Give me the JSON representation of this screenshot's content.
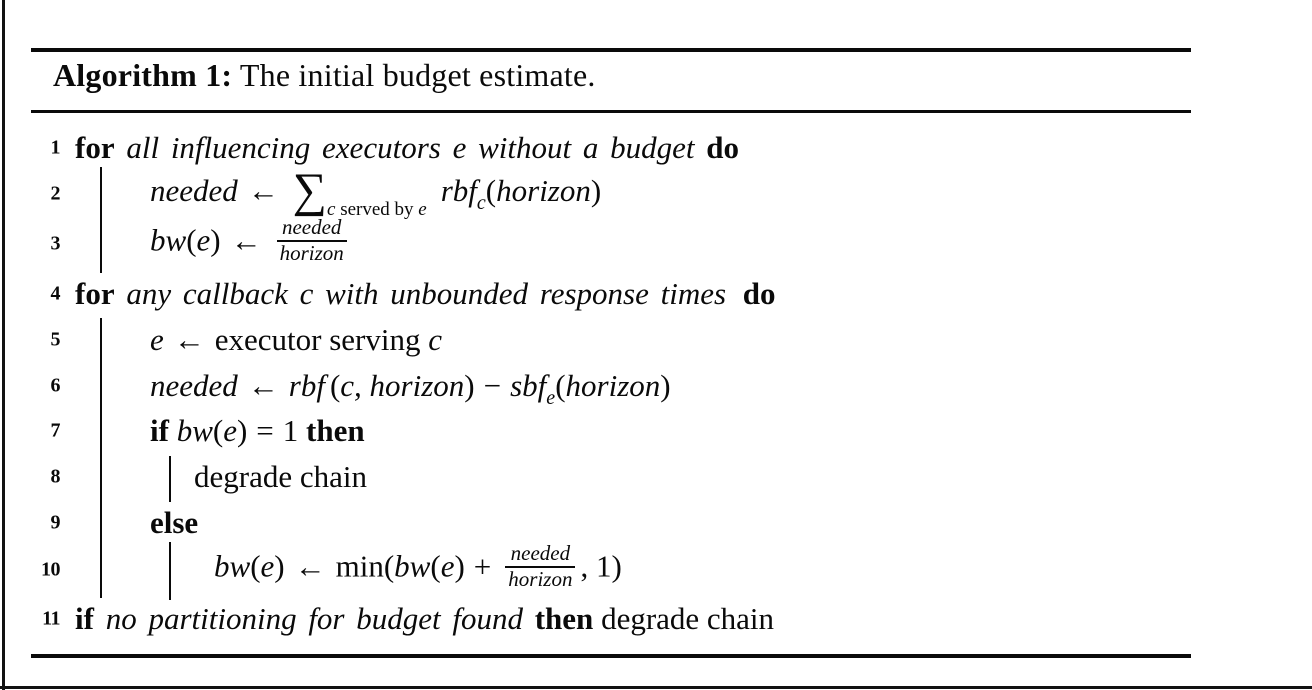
{
  "colors": {
    "ink": "#0a0a0a",
    "background": "#ffffff"
  },
  "caption": {
    "label": "Algorithm 1:",
    "title": " The initial budget estimate."
  },
  "lines": {
    "l1": {
      "num": "1",
      "parts": [
        {
          "c": "kw",
          "t": "for"
        },
        {
          "c": "it",
          "t": " all influencing executors e without a budget "
        },
        {
          "c": "kw",
          "t": "do"
        }
      ]
    },
    "l2": {
      "num": "2",
      "parts": [
        {
          "c": "ma",
          "t": "needed"
        },
        {
          "c": "ar",
          "t": "←"
        },
        {
          "c": "sum",
          "t": "∑"
        },
        {
          "c": "ssub",
          "t": "c"
        },
        {
          "c": "ssubrm",
          "t": " served by "
        },
        {
          "c": "ssub",
          "t": "e"
        },
        {
          "c": "ma mgl",
          "t": "rbf"
        },
        {
          "c": "sub",
          "t": "c"
        },
        {
          "c": "rm",
          "t": "("
        },
        {
          "c": "ma",
          "t": "horizon"
        },
        {
          "c": "rm",
          "t": ")"
        }
      ]
    },
    "l3": {
      "num": "3",
      "parts": [
        {
          "c": "ma",
          "t": "bw"
        },
        {
          "c": "rm",
          "t": "("
        },
        {
          "c": "ma",
          "t": "e"
        },
        {
          "c": "rm",
          "t": ")"
        },
        {
          "c": "ar",
          "t": "←"
        },
        {
          "c": "frac",
          "num": "needed",
          "den": "horizon"
        }
      ]
    },
    "l4": {
      "num": "4",
      "parts": [
        {
          "c": "kw",
          "t": "for"
        },
        {
          "c": "it",
          "t": " any callback c with unbounded response times "
        },
        {
          "c": "kw sgl",
          "t": "do"
        }
      ]
    },
    "l5": {
      "num": "5",
      "parts": [
        {
          "c": "ma",
          "t": "e"
        },
        {
          "c": "ar",
          "t": "←"
        },
        {
          "c": "rm",
          "t": "executor serving "
        },
        {
          "c": "ma",
          "t": "c"
        }
      ]
    },
    "l6": {
      "num": "6",
      "parts": [
        {
          "c": "ma",
          "t": "needed"
        },
        {
          "c": "ar",
          "t": "←"
        },
        {
          "c": "ma",
          "t": "rbf"
        },
        {
          "c": "rm sgl",
          "t": "("
        },
        {
          "c": "ma",
          "t": "c, horizon"
        },
        {
          "c": "rm",
          "t": ")"
        },
        {
          "c": "op",
          "t": "−"
        },
        {
          "c": "ma",
          "t": "sbf"
        },
        {
          "c": "sub",
          "t": "e"
        },
        {
          "c": "rm",
          "t": "("
        },
        {
          "c": "ma",
          "t": "horizon"
        },
        {
          "c": "rm",
          "t": ")"
        }
      ]
    },
    "l7": {
      "num": "7",
      "parts": [
        {
          "c": "kw",
          "t": "if "
        },
        {
          "c": "ma",
          "t": "bw"
        },
        {
          "c": "rm",
          "t": "("
        },
        {
          "c": "ma",
          "t": "e"
        },
        {
          "c": "rm",
          "t": ")"
        },
        {
          "c": "op",
          "t": "="
        },
        {
          "c": "rm",
          "t": "1 "
        },
        {
          "c": "kw",
          "t": "then"
        }
      ]
    },
    "l8": {
      "num": "8",
      "parts": [
        {
          "c": "rm",
          "t": "degrade chain"
        }
      ]
    },
    "l9": {
      "num": "9",
      "parts": [
        {
          "c": "kw",
          "t": "else"
        }
      ]
    },
    "l10": {
      "num": "10",
      "parts": [
        {
          "c": "ma",
          "t": "bw"
        },
        {
          "c": "rm",
          "t": "("
        },
        {
          "c": "ma",
          "t": "e"
        },
        {
          "c": "rm",
          "t": ")"
        },
        {
          "c": "ar",
          "t": "←"
        },
        {
          "c": "rm",
          "t": "min("
        },
        {
          "c": "ma",
          "t": "bw"
        },
        {
          "c": "rm",
          "t": "("
        },
        {
          "c": "ma",
          "t": "e"
        },
        {
          "c": "rm",
          "t": ")"
        },
        {
          "c": "op",
          "t": "+"
        },
        {
          "c": "frac",
          "num": "needed",
          "den": "horizon"
        },
        {
          "c": "rm",
          "t": ", 1)"
        }
      ]
    },
    "l11": {
      "num": "11",
      "parts": [
        {
          "c": "kw",
          "t": "if"
        },
        {
          "c": "it",
          "t": " no partitioning for budget found "
        },
        {
          "c": "kw",
          "t": "then"
        },
        {
          "c": "rm",
          "t": " degrade chain"
        }
      ]
    }
  }
}
